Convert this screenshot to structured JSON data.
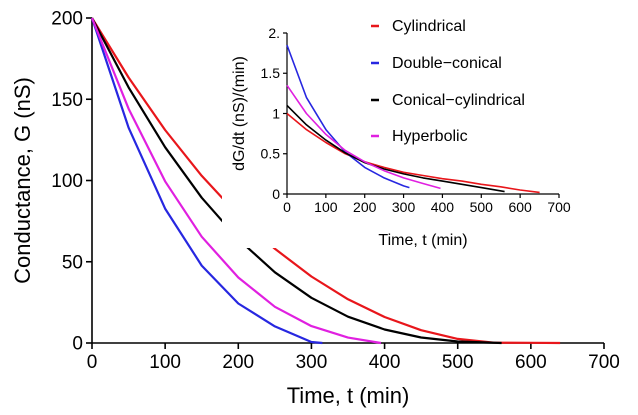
{
  "chart_data": [
    {
      "type": "line",
      "xlabel": "Time, t (min)",
      "ylabel": "Conductance, G (nS)",
      "xlim": [
        0,
        700
      ],
      "ylim": [
        0,
        200
      ],
      "xticks": [
        "0",
        "100",
        "200",
        "300",
        "400",
        "500",
        "600",
        "700"
      ],
      "yticks": [
        "0",
        "50",
        "100",
        "150",
        "200"
      ],
      "legend": "inside top-right",
      "series": [
        {
          "name": "Cylindrical",
          "color": "#e8161b",
          "x": [
            0,
            50,
            100,
            150,
            200,
            250,
            300,
            350,
            400,
            450,
            500,
            550,
            600,
            640
          ],
          "values": [
            200,
            163.4,
            131.1,
            102.9,
            78.6,
            58.0,
            40.9,
            26.9,
            16.0,
            7.9,
            2.5,
            0.2,
            0.1,
            0
          ]
        },
        {
          "name": "Double−conical",
          "color": "#2727e0",
          "x": [
            0,
            50,
            100,
            150,
            200,
            250,
            300,
            315
          ],
          "values": [
            200,
            132.5,
            82.7,
            47.6,
            24.3,
            10.2,
            0.6,
            0
          ]
        },
        {
          "name": "Conical−cylindrical",
          "color": "#000000",
          "x": [
            0,
            50,
            100,
            150,
            200,
            250,
            300,
            350,
            400,
            450,
            500,
            560
          ],
          "values": [
            200,
            157.3,
            120.5,
            89.4,
            63.9,
            43.5,
            27.8,
            16.2,
            8.3,
            3.4,
            0.9,
            0
          ]
        },
        {
          "name": "Hyperbolic",
          "color": "#e020e0",
          "x": [
            0,
            50,
            100,
            150,
            200,
            250,
            300,
            350,
            395
          ],
          "values": [
            200,
            144.2,
            99.5,
            65.4,
            40.3,
            22.3,
            10.4,
            3.3,
            0
          ]
        }
      ]
    },
    {
      "type": "line",
      "xlabel": "Time, t (min)",
      "ylabel": "dG/dt (nS)/(min)",
      "xlim": [
        0,
        700
      ],
      "ylim": [
        0,
        2
      ],
      "xticks": [
        "0",
        "100",
        "200",
        "300",
        "400",
        "500",
        "600",
        "700"
      ],
      "yticks": [
        "0",
        "0.5",
        "1",
        "1.5",
        "2."
      ],
      "series": [
        {
          "name": "Cylindrical",
          "color": "#e8161b",
          "x": [
            0,
            50,
            100,
            150,
            200,
            250,
            300,
            350,
            400,
            450,
            500,
            550,
            600,
            650
          ],
          "values": [
            1.0,
            0.8,
            0.64,
            0.5,
            0.4,
            0.33,
            0.27,
            0.23,
            0.19,
            0.16,
            0.12,
            0.09,
            0.05,
            0.02
          ]
        },
        {
          "name": "Double−conical",
          "color": "#2727e0",
          "x": [
            0,
            50,
            100,
            150,
            200,
            250,
            300,
            315
          ],
          "values": [
            1.85,
            1.2,
            0.8,
            0.52,
            0.33,
            0.2,
            0.1,
            0.08
          ]
        },
        {
          "name": "Conical−cylindrical",
          "color": "#000000",
          "x": [
            0,
            50,
            100,
            150,
            200,
            250,
            300,
            350,
            400,
            450,
            500,
            560
          ],
          "values": [
            1.1,
            0.86,
            0.67,
            0.51,
            0.39,
            0.31,
            0.25,
            0.2,
            0.16,
            0.12,
            0.08,
            0.03
          ]
        },
        {
          "name": "Hyperbolic",
          "color": "#e020e0",
          "x": [
            0,
            50,
            100,
            150,
            200,
            250,
            300,
            350,
            395
          ],
          "values": [
            1.35,
            1.0,
            0.74,
            0.54,
            0.4,
            0.29,
            0.2,
            0.13,
            0.07
          ]
        }
      ]
    }
  ]
}
